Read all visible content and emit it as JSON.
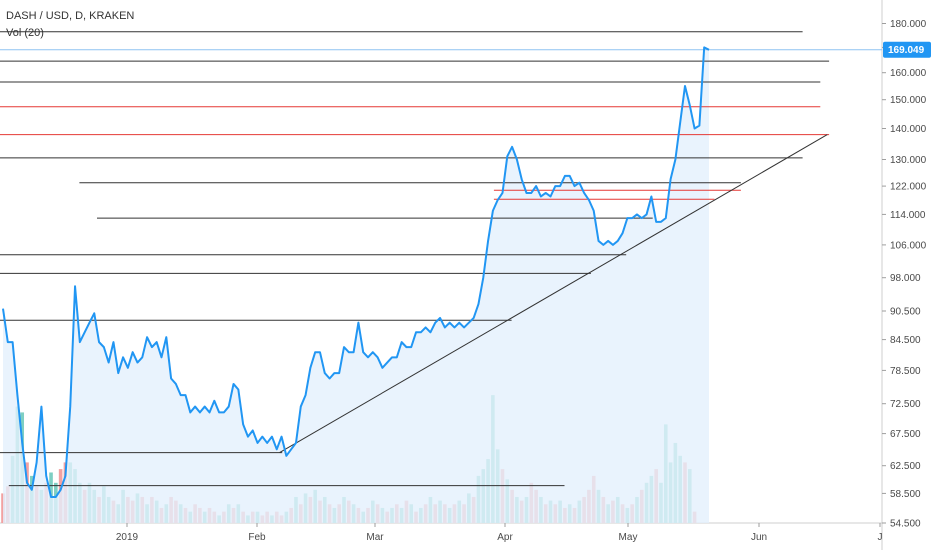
{
  "header": {
    "symbol_line": "DASH / USD, D, KRAKEN",
    "volume_line": "Vol (20)"
  },
  "last_price_label": "169.049",
  "colors": {
    "price_line": "#2196f3",
    "area_fill": "#e3f0fc",
    "support_line": "#333333",
    "resistance_red": "#e53935",
    "vol_up": "#7ecfc3",
    "vol_down": "#f2a1a1"
  },
  "chart_data": {
    "type": "line",
    "ylim": [
      54.5,
      185
    ],
    "y_scale": "log",
    "y_ticks": [
      "180.000",
      "170.000",
      "160.000",
      "150.000",
      "140.000",
      "130.000",
      "122.000",
      "114.000",
      "106.000",
      "98.000",
      "90.500",
      "84.500",
      "78.500",
      "72.500",
      "67.500",
      "62.500",
      "58.500",
      "54.500"
    ],
    "x_ticks": [
      "2019",
      "Feb",
      "Mar",
      "Apr",
      "May",
      "Jun",
      "J"
    ],
    "last_price": 169.049,
    "series": [
      {
        "values": [
          91,
          84,
          84,
          74,
          66,
          60,
          59,
          63,
          72,
          61,
          58,
          58,
          59,
          61,
          72,
          96,
          84,
          86,
          88,
          90,
          84,
          83,
          80,
          84,
          78,
          81,
          79,
          82,
          80,
          81,
          85,
          83,
          84,
          81,
          85,
          77,
          76,
          74,
          74,
          71,
          72,
          71,
          72,
          71,
          73,
          71,
          71,
          72,
          76,
          75,
          69,
          67,
          68,
          66,
          67,
          66,
          67,
          65,
          67,
          64,
          65,
          66,
          72,
          74,
          79,
          82,
          82,
          78,
          77,
          78,
          78,
          83,
          82,
          82,
          88,
          82,
          81,
          82,
          81,
          79,
          80,
          81,
          81,
          84,
          83,
          83,
          86,
          86,
          87,
          86,
          88,
          89,
          87,
          88,
          87,
          88,
          87,
          88,
          89,
          92,
          98,
          107,
          115,
          118,
          120,
          131,
          134,
          130,
          124,
          120,
          120,
          122,
          119,
          120,
          119,
          122,
          122,
          125,
          125,
          122,
          123,
          120,
          118,
          115,
          107,
          106,
          107,
          106,
          107,
          109,
          113,
          113,
          114,
          113,
          114,
          119,
          112,
          112,
          113,
          124,
          130,
          142,
          155,
          148,
          140,
          141,
          170,
          169
        ]
      }
    ],
    "volume": [
      {
        "v": 58.5,
        "up": false
      },
      {
        "v": 59.5,
        "up": false
      },
      {
        "v": 64,
        "up": true
      },
      {
        "v": 72,
        "up": true
      },
      {
        "v": 71,
        "up": true
      },
      {
        "v": 63,
        "up": false
      },
      {
        "v": 61,
        "up": true
      },
      {
        "v": 59.5,
        "up": false
      },
      {
        "v": 59,
        "up": true
      },
      {
        "v": 60,
        "up": false
      },
      {
        "v": 61.5,
        "up": true
      },
      {
        "v": 60,
        "up": true
      },
      {
        "v": 62,
        "up": false
      },
      {
        "v": 63,
        "up": false
      },
      {
        "v": 63,
        "up": true
      },
      {
        "v": 62,
        "up": true
      },
      {
        "v": 60,
        "up": true
      },
      {
        "v": 59,
        "up": false
      },
      {
        "v": 60,
        "up": true
      },
      {
        "v": 59,
        "up": true
      },
      {
        "v": 58,
        "up": false
      },
      {
        "v": 59.5,
        "up": true
      },
      {
        "v": 58,
        "up": true
      },
      {
        "v": 57.5,
        "up": false
      },
      {
        "v": 57,
        "up": true
      },
      {
        "v": 59,
        "up": true
      },
      {
        "v": 58,
        "up": false
      },
      {
        "v": 57.5,
        "up": false
      },
      {
        "v": 58.5,
        "up": true
      },
      {
        "v": 58,
        "up": false
      },
      {
        "v": 57,
        "up": true
      },
      {
        "v": 58,
        "up": false
      },
      {
        "v": 57.5,
        "up": true
      },
      {
        "v": 56.5,
        "up": false
      },
      {
        "v": 57,
        "up": true
      },
      {
        "v": 58,
        "up": false
      },
      {
        "v": 57.5,
        "up": false
      },
      {
        "v": 57,
        "up": true
      },
      {
        "v": 56.5,
        "up": false
      },
      {
        "v": 56,
        "up": true
      },
      {
        "v": 57,
        "up": false
      },
      {
        "v": 56.5,
        "up": false
      },
      {
        "v": 56,
        "up": true
      },
      {
        "v": 56.5,
        "up": false
      },
      {
        "v": 56,
        "up": false
      },
      {
        "v": 55.5,
        "up": true
      },
      {
        "v": 56,
        "up": false
      },
      {
        "v": 57,
        "up": true
      },
      {
        "v": 56.5,
        "up": false
      },
      {
        "v": 57,
        "up": true
      },
      {
        "v": 56,
        "up": false
      },
      {
        "v": 55.5,
        "up": true
      },
      {
        "v": 56,
        "up": false
      },
      {
        "v": 56,
        "up": true
      },
      {
        "v": 55.5,
        "up": false
      },
      {
        "v": 56,
        "up": false
      },
      {
        "v": 55.5,
        "up": true
      },
      {
        "v": 56,
        "up": false
      },
      {
        "v": 55.5,
        "up": false
      },
      {
        "v": 56,
        "up": true
      },
      {
        "v": 56.5,
        "up": false
      },
      {
        "v": 58,
        "up": true
      },
      {
        "v": 57,
        "up": false
      },
      {
        "v": 58.5,
        "up": true
      },
      {
        "v": 58,
        "up": false
      },
      {
        "v": 59,
        "up": true
      },
      {
        "v": 57.5,
        "up": false
      },
      {
        "v": 58,
        "up": true
      },
      {
        "v": 57,
        "up": false
      },
      {
        "v": 56.5,
        "up": true
      },
      {
        "v": 57,
        "up": false
      },
      {
        "v": 58,
        "up": true
      },
      {
        "v": 57.5,
        "up": false
      },
      {
        "v": 57,
        "up": true
      },
      {
        "v": 56.5,
        "up": false
      },
      {
        "v": 56,
        "up": true
      },
      {
        "v": 56.5,
        "up": false
      },
      {
        "v": 57.5,
        "up": true
      },
      {
        "v": 57,
        "up": false
      },
      {
        "v": 56.5,
        "up": true
      },
      {
        "v": 56,
        "up": false
      },
      {
        "v": 56.5,
        "up": true
      },
      {
        "v": 57,
        "up": false
      },
      {
        "v": 56.5,
        "up": true
      },
      {
        "v": 57.5,
        "up": false
      },
      {
        "v": 57,
        "up": true
      },
      {
        "v": 56,
        "up": false
      },
      {
        "v": 56.5,
        "up": true
      },
      {
        "v": 57,
        "up": false
      },
      {
        "v": 58,
        "up": true
      },
      {
        "v": 57,
        "up": false
      },
      {
        "v": 57.5,
        "up": true
      },
      {
        "v": 57,
        "up": false
      },
      {
        "v": 56.5,
        "up": true
      },
      {
        "v": 57,
        "up": false
      },
      {
        "v": 57.5,
        "up": true
      },
      {
        "v": 57,
        "up": false
      },
      {
        "v": 58.5,
        "up": true
      },
      {
        "v": 58,
        "up": false
      },
      {
        "v": 61,
        "up": true
      },
      {
        "v": 62,
        "up": true
      },
      {
        "v": 63.5,
        "up": true
      },
      {
        "v": 74,
        "up": true
      },
      {
        "v": 65,
        "up": true
      },
      {
        "v": 62,
        "up": false
      },
      {
        "v": 60.5,
        "up": true
      },
      {
        "v": 59,
        "up": false
      },
      {
        "v": 58,
        "up": true
      },
      {
        "v": 57.5,
        "up": false
      },
      {
        "v": 58,
        "up": true
      },
      {
        "v": 60,
        "up": false
      },
      {
        "v": 59,
        "up": false
      },
      {
        "v": 58,
        "up": true
      },
      {
        "v": 57,
        "up": false
      },
      {
        "v": 57.5,
        "up": true
      },
      {
        "v": 57,
        "up": false
      },
      {
        "v": 57.5,
        "up": true
      },
      {
        "v": 56.5,
        "up": false
      },
      {
        "v": 57,
        "up": true
      },
      {
        "v": 56.5,
        "up": false
      },
      {
        "v": 57.5,
        "up": true
      },
      {
        "v": 58,
        "up": false
      },
      {
        "v": 59,
        "up": false
      },
      {
        "v": 61,
        "up": false
      },
      {
        "v": 59,
        "up": true
      },
      {
        "v": 58,
        "up": false
      },
      {
        "v": 57,
        "up": true
      },
      {
        "v": 57.5,
        "up": false
      },
      {
        "v": 58,
        "up": true
      },
      {
        "v": 57,
        "up": false
      },
      {
        "v": 56.5,
        "up": true
      },
      {
        "v": 57,
        "up": false
      },
      {
        "v": 58,
        "up": true
      },
      {
        "v": 59,
        "up": false
      },
      {
        "v": 60,
        "up": true
      },
      {
        "v": 61,
        "up": true
      },
      {
        "v": 62,
        "up": false
      },
      {
        "v": 60,
        "up": true
      },
      {
        "v": 69,
        "up": true
      },
      {
        "v": 63,
        "up": true
      },
      {
        "v": 66,
        "up": true
      },
      {
        "v": 64,
        "up": true
      },
      {
        "v": 63,
        "up": false
      },
      {
        "v": 62,
        "up": true
      },
      {
        "v": 56,
        "up": false
      }
    ],
    "annotations": {
      "horizontal_lines": [
        {
          "x0": 0.0,
          "x1": 0.91,
          "y": 176.5,
          "color": "#333333"
        },
        {
          "x0": 0.0,
          "x1": 0.94,
          "y": 164.5,
          "color": "#333333"
        },
        {
          "x0": 0.0,
          "x1": 0.93,
          "y": 156.5,
          "color": "#333333"
        },
        {
          "x0": 0.0,
          "x1": 0.93,
          "y": 147.5,
          "color": "#e53935"
        },
        {
          "x0": 0.0,
          "x1": 0.94,
          "y": 138.0,
          "color": "#e53935"
        },
        {
          "x0": 0.0,
          "x1": 0.91,
          "y": 130.5,
          "color": "#333333"
        },
        {
          "x0": 0.09,
          "x1": 0.84,
          "y": 123.0,
          "color": "#333333"
        },
        {
          "x0": 0.56,
          "x1": 0.84,
          "y": 120.8,
          "color": "#e53935"
        },
        {
          "x0": 0.56,
          "x1": 0.81,
          "y": 118.2,
          "color": "#e53935"
        },
        {
          "x0": 0.11,
          "x1": 0.74,
          "y": 113.0,
          "color": "#333333"
        },
        {
          "x0": 0.0,
          "x1": 0.71,
          "y": 103.5,
          "color": "#333333"
        },
        {
          "x0": 0.0,
          "x1": 0.67,
          "y": 99.0,
          "color": "#333333"
        },
        {
          "x0": 0.0,
          "x1": 0.58,
          "y": 88.5,
          "color": "#333333"
        },
        {
          "x0": 0.0,
          "x1": 0.32,
          "y": 64.5,
          "color": "#333333"
        },
        {
          "x0": 0.01,
          "x1": 0.64,
          "y": 59.6,
          "color": "#333333"
        }
      ],
      "trendline": {
        "x0": 0.317,
        "y0": 64.5,
        "x1": 0.938,
        "y1": 138.0
      }
    }
  }
}
